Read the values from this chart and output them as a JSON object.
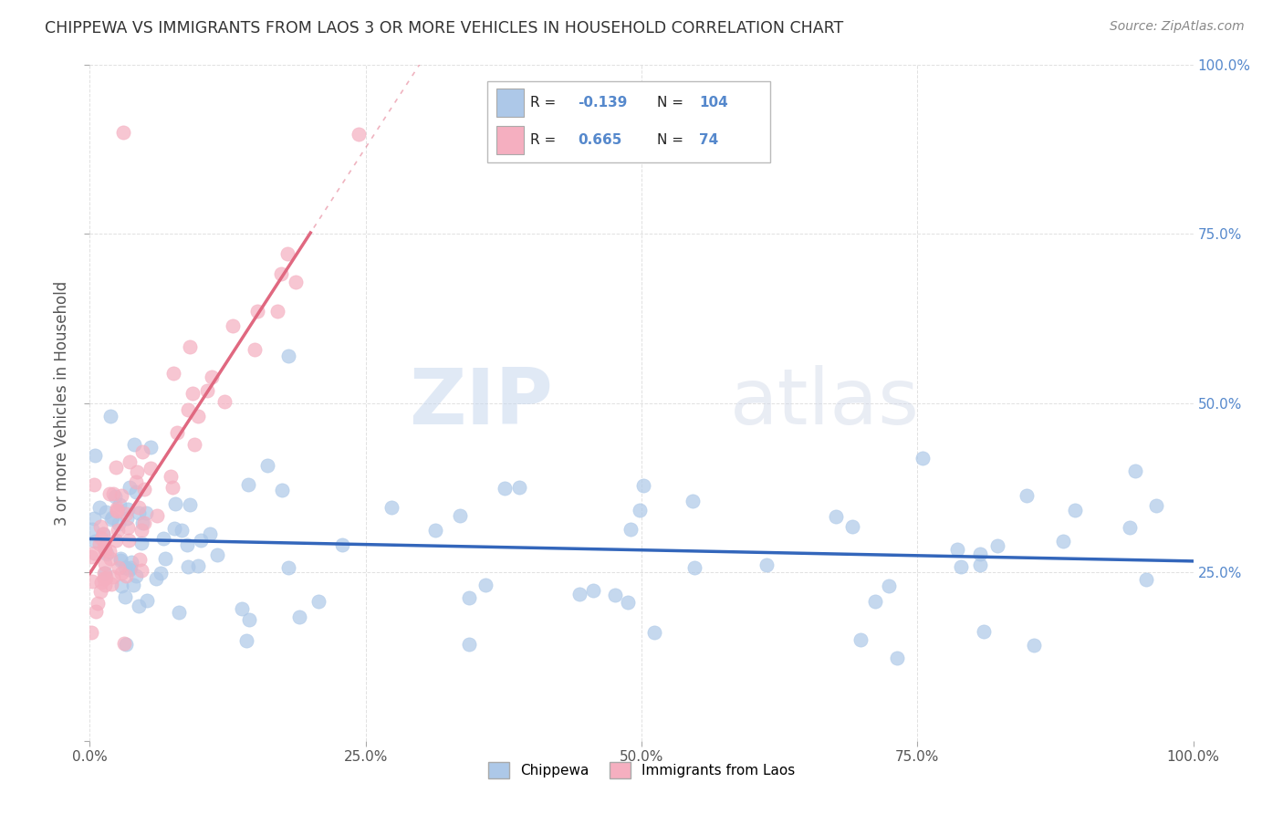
{
  "title": "CHIPPEWA VS IMMIGRANTS FROM LAOS 3 OR MORE VEHICLES IN HOUSEHOLD CORRELATION CHART",
  "source": "Source: ZipAtlas.com",
  "ylabel": "3 or more Vehicles in Household",
  "xlim": [
    0.0,
    100.0
  ],
  "ylim": [
    0.0,
    100.0
  ],
  "blue_R": -0.139,
  "blue_N": 104,
  "pink_R": 0.665,
  "pink_N": 74,
  "blue_color": "#adc8e8",
  "pink_color": "#f5afc0",
  "blue_line_color": "#3366bb",
  "pink_line_color": "#e06880",
  "watermark_zip": "ZIP",
  "watermark_atlas": "atlas",
  "legend_labels": [
    "Chippewa",
    "Immigrants from Laos"
  ],
  "title_color": "#333333",
  "source_color": "#888888",
  "right_axis_color": "#5588cc",
  "grid_color": "#cccccc"
}
